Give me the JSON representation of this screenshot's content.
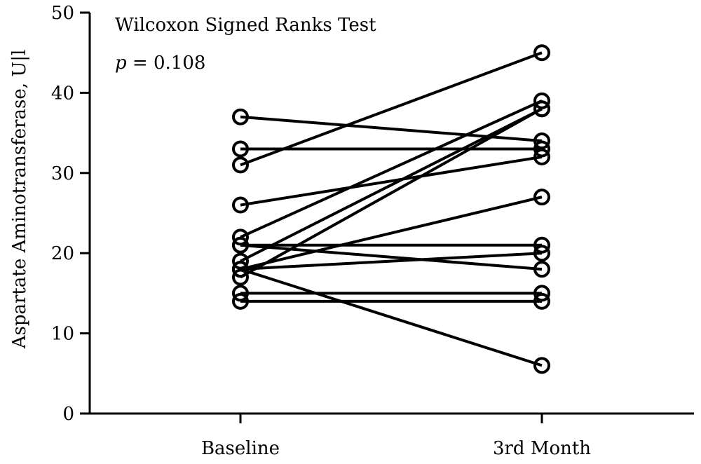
{
  "chart_data": {
    "type": "line",
    "subtype": "paired-before-after",
    "title": "",
    "xlabel": "",
    "ylabel": "Aspartate Aminotransferase, U|l",
    "ylim": [
      0,
      50
    ],
    "yticks": [
      0,
      10,
      20,
      30,
      40,
      50
    ],
    "categories": [
      "Baseline",
      "3rd Month"
    ],
    "grid": false,
    "legend": "none",
    "annotations": {
      "test_name": "Wilcoxon Signed Ranks Test",
      "p_symbol": "p",
      "p_text": " = 0.108"
    },
    "pairs": [
      {
        "baseline": 37,
        "month3": 34
      },
      {
        "baseline": 33,
        "month3": 33
      },
      {
        "baseline": 31,
        "month3": 45
      },
      {
        "baseline": 26,
        "month3": 32
      },
      {
        "baseline": 22,
        "month3": 39
      },
      {
        "baseline": 21,
        "month3": 21
      },
      {
        "baseline": 21,
        "month3": 18
      },
      {
        "baseline": 19,
        "month3": 38
      },
      {
        "baseline": 18,
        "month3": 27
      },
      {
        "baseline": 17,
        "month3": 38
      },
      {
        "baseline": 18,
        "month3": 20
      },
      {
        "baseline": 18,
        "month3": 6
      },
      {
        "baseline": 15,
        "month3": 15
      },
      {
        "baseline": 14,
        "month3": 14
      }
    ],
    "colors": {
      "line": "#000000",
      "marker": "#000000"
    }
  }
}
